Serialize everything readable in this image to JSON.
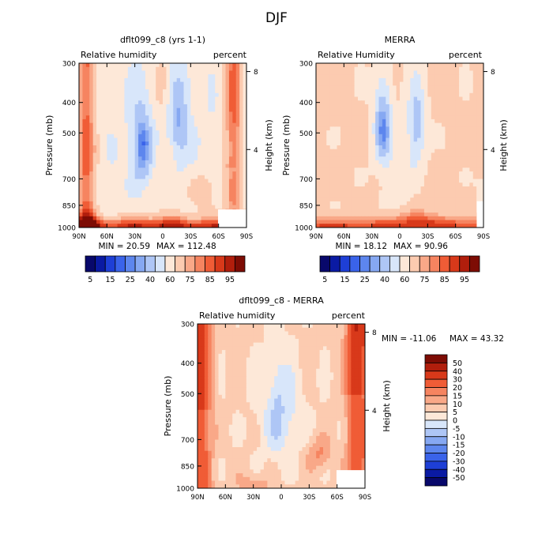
{
  "figure": {
    "title": "DJF"
  },
  "chart_data": [
    {
      "id": "model",
      "type": "heatmap",
      "title": "dflt099_c8 (yrs 1-1)",
      "subtitle_left": "Relative humidity",
      "subtitle_right": "percent",
      "ylabel": "Pressure (mb)",
      "ylabel_right": "Height (km)",
      "x_ticks": [
        "90N",
        "60N",
        "30N",
        "0",
        "30S",
        "60S",
        "90S"
      ],
      "y_ticks": [
        "300",
        "400",
        "500",
        "700",
        "850",
        "1000"
      ],
      "y_tick_values": [
        300,
        400,
        500,
        700,
        850,
        1000
      ],
      "height_ticks": [
        "8",
        "4"
      ],
      "height_tick_values": [
        8,
        4
      ],
      "ylim": [
        1000,
        300
      ],
      "xlim": [
        90,
        -90
      ],
      "min_label": "MIN = 20.59",
      "max_label": "MAX = 112.48",
      "min": 20.59,
      "max": 112.48,
      "colorbar_labels": [
        "5",
        "15",
        "25",
        "40",
        "60",
        "75",
        "85",
        "95"
      ],
      "levels": [
        5,
        10,
        15,
        20,
        25,
        30,
        40,
        50,
        60,
        70,
        75,
        80,
        85,
        90,
        95
      ]
    },
    {
      "id": "obs",
      "type": "heatmap",
      "title": "MERRA",
      "subtitle_left": "Relative Humidity",
      "subtitle_right": "percent",
      "ylabel": "Pressure (mb)",
      "ylabel_right": "Height (km)",
      "x_ticks": [
        "90N",
        "60N",
        "30N",
        "0",
        "30S",
        "60S",
        "90S"
      ],
      "y_ticks": [
        "300",
        "400",
        "500",
        "700",
        "850",
        "1000"
      ],
      "y_tick_values": [
        300,
        400,
        500,
        700,
        850,
        1000
      ],
      "height_ticks": [
        "8",
        "4"
      ],
      "height_tick_values": [
        8,
        4
      ],
      "ylim": [
        1000,
        300
      ],
      "xlim": [
        90,
        -90
      ],
      "min_label": "MIN = 18.12",
      "max_label": "MAX = 90.96",
      "min": 18.12,
      "max": 90.96,
      "colorbar_labels": [
        "5",
        "15",
        "25",
        "40",
        "60",
        "75",
        "85",
        "95"
      ],
      "levels": [
        5,
        10,
        15,
        20,
        25,
        30,
        40,
        50,
        60,
        70,
        75,
        80,
        85,
        90,
        95
      ]
    },
    {
      "id": "diff",
      "type": "heatmap",
      "title": "dflt099_c8 - MERRA",
      "subtitle_left": "Relative humidity",
      "subtitle_right": "percent",
      "ylabel": "Pressure (mb)",
      "ylabel_right": "Height (km)",
      "x_ticks": [
        "90N",
        "60N",
        "30N",
        "0",
        "30S",
        "60S",
        "90S"
      ],
      "y_ticks": [
        "300",
        "400",
        "500",
        "700",
        "850",
        "1000"
      ],
      "y_tick_values": [
        300,
        400,
        500,
        700,
        850,
        1000
      ],
      "height_ticks": [
        "8",
        "4"
      ],
      "height_tick_values": [
        8,
        4
      ],
      "ylim": [
        1000,
        300
      ],
      "xlim": [
        90,
        -90
      ],
      "min_label": "MIN = -11.06",
      "max_label": "MAX =  43.32",
      "min": -11.06,
      "max": 43.32,
      "colorbar_labels": [
        "50",
        "40",
        "30",
        "20",
        "15",
        "10",
        "5",
        "0",
        "-5",
        "-10",
        "-15",
        "-20",
        "-30",
        "-40",
        "-50"
      ],
      "levels": [
        -50,
        -40,
        -30,
        -20,
        -15,
        -10,
        -5,
        0,
        5,
        10,
        15,
        20,
        30,
        40,
        50
      ]
    }
  ],
  "palettes": {
    "absolute": [
      "#08086b",
      "#0a1aa3",
      "#1e3fd6",
      "#3a63ea",
      "#5d86ee",
      "#86a8f2",
      "#aec6f6",
      "#d8e6fa",
      "#fde8d8",
      "#fccbb0",
      "#f9a888",
      "#f68460",
      "#f05c36",
      "#d8391a",
      "#b11e0c",
      "#7d0c04"
    ],
    "difference": [
      "#08086b",
      "#0a1aa3",
      "#1e3fd6",
      "#3a63ea",
      "#5d86ee",
      "#86a8f2",
      "#aec6f6",
      "#d8e6fa",
      "#fde8d8",
      "#fccbb0",
      "#f9a888",
      "#f68460",
      "#f05c36",
      "#d8391a",
      "#b11e0c",
      "#7d0c04"
    ]
  }
}
